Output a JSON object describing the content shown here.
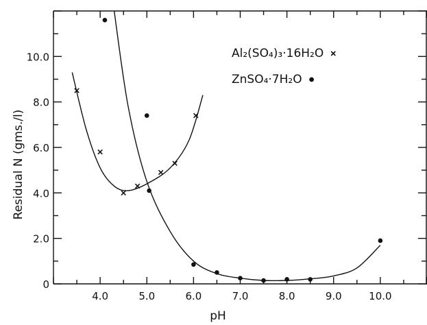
{
  "chart_data": {
    "type": "scatter",
    "title": "",
    "xlabel": "pH",
    "ylabel": "Residual N (gms./l)",
    "xlim": [
      3.0,
      11.0
    ],
    "ylim": [
      0.0,
      12.0
    ],
    "x_ticks": [
      {
        "value": 4.0,
        "label": "4.0"
      },
      {
        "value": 5.0,
        "label": "5.0"
      },
      {
        "value": 6.0,
        "label": "6.0"
      },
      {
        "value": 7.0,
        "label": "7.0"
      },
      {
        "value": 8.0,
        "label": "8.0"
      },
      {
        "value": 9.0,
        "label": "9.0"
      },
      {
        "value": 10.0,
        "label": "10.0"
      }
    ],
    "y_ticks": [
      {
        "value": 0,
        "label": "0"
      },
      {
        "value": 2.0,
        "label": "2.0"
      },
      {
        "value": 4.0,
        "label": "4.0"
      },
      {
        "value": 6.0,
        "label": "6.0"
      },
      {
        "value": 8.0,
        "label": "8.0"
      },
      {
        "value": 10.0,
        "label": "10.0"
      }
    ],
    "grid": false,
    "legend_position": "top-right",
    "series": [
      {
        "name": "Al2(SO4)3·16H2O",
        "legend_label": "Al₂(SO₄)₃·16H₂O",
        "marker": "x",
        "color": "#111111",
        "points": [
          {
            "x": 3.5,
            "y": 8.5
          },
          {
            "x": 4.0,
            "y": 5.8
          },
          {
            "x": 4.5,
            "y": 4.0
          },
          {
            "x": 4.8,
            "y": 4.3
          },
          {
            "x": 5.3,
            "y": 4.9
          },
          {
            "x": 5.6,
            "y": 5.3
          },
          {
            "x": 6.05,
            "y": 7.4
          }
        ],
        "fit": [
          {
            "x": 3.4,
            "y": 9.3
          },
          {
            "x": 3.7,
            "y": 6.8
          },
          {
            "x": 4.0,
            "y": 5.1
          },
          {
            "x": 4.3,
            "y": 4.3
          },
          {
            "x": 4.6,
            "y": 4.1
          },
          {
            "x": 5.0,
            "y": 4.4
          },
          {
            "x": 5.5,
            "y": 5.1
          },
          {
            "x": 5.9,
            "y": 6.3
          },
          {
            "x": 6.2,
            "y": 8.3
          }
        ]
      },
      {
        "name": "ZnSO4·7H2O",
        "legend_label": "ZnSO₄·7H₂O",
        "marker": "dot",
        "color": "#111111",
        "points": [
          {
            "x": 4.1,
            "y": 11.6
          },
          {
            "x": 5.0,
            "y": 7.4
          },
          {
            "x": 5.05,
            "y": 4.1
          },
          {
            "x": 6.0,
            "y": 0.85
          },
          {
            "x": 6.5,
            "y": 0.5
          },
          {
            "x": 7.0,
            "y": 0.25
          },
          {
            "x": 7.5,
            "y": 0.15
          },
          {
            "x": 8.0,
            "y": 0.2
          },
          {
            "x": 8.5,
            "y": 0.2
          },
          {
            "x": 10.0,
            "y": 1.9
          }
        ],
        "fit": [
          {
            "x": 4.3,
            "y": 12.0
          },
          {
            "x": 4.6,
            "y": 7.8
          },
          {
            "x": 5.0,
            "y": 4.5
          },
          {
            "x": 5.5,
            "y": 2.3
          },
          {
            "x": 6.0,
            "y": 1.0
          },
          {
            "x": 6.5,
            "y": 0.45
          },
          {
            "x": 7.0,
            "y": 0.25
          },
          {
            "x": 7.5,
            "y": 0.15
          },
          {
            "x": 8.0,
            "y": 0.15
          },
          {
            "x": 8.5,
            "y": 0.22
          },
          {
            "x": 9.0,
            "y": 0.35
          },
          {
            "x": 9.5,
            "y": 0.7
          },
          {
            "x": 10.0,
            "y": 1.7
          }
        ]
      }
    ]
  }
}
